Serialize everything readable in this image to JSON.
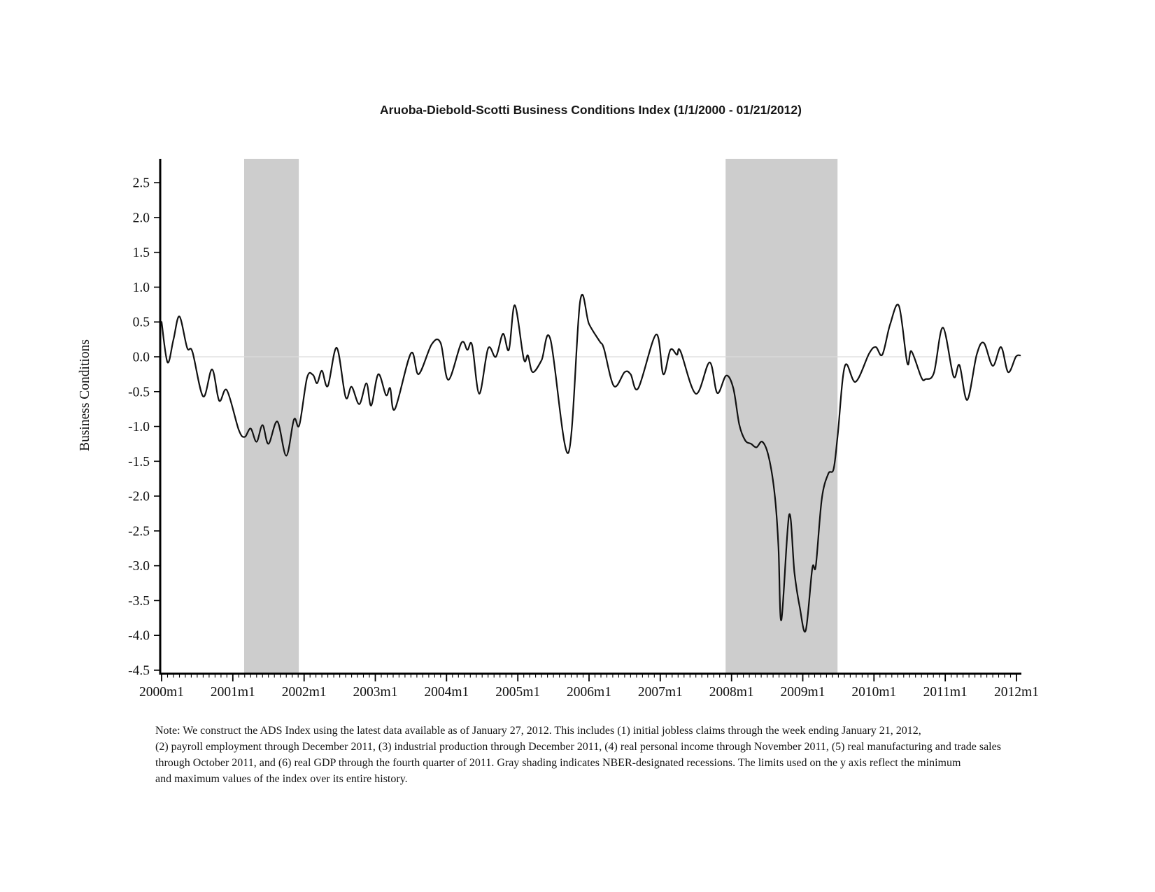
{
  "title": "Aruoba-Diebold-Scotti Business Conditions Index (1/1/2000 - 01/21/2012)",
  "y_axis": {
    "label": "Business Conditions",
    "tick_labels": [
      "2.5",
      "2.0",
      "1.5",
      "1.0",
      "0.5",
      "0.0",
      "-0.5",
      "-1.0",
      "-1.5",
      "-2.0",
      "-2.5",
      "-3.0",
      "-3.5",
      "-4.0",
      "-4.5"
    ]
  },
  "x_axis": {
    "tick_labels": [
      "2000m1",
      "2001m1",
      "2002m1",
      "2003m1",
      "2004m1",
      "2005m1",
      "2006m1",
      "2007m1",
      "2008m1",
      "2009m1",
      "2010m1",
      "2011m1",
      "2012m1"
    ],
    "minor_tick_interval": "monthly"
  },
  "note": {
    "lines": [
      "Note: We construct the ADS Index using the latest data available as of January 27, 2012. This includes (1) initial jobless claims through the week ending January 21, 2012,",
      "(2) payroll employment through December 2011, (3) industrial production through December 2011, (4) real personal income through November 2011, (5) real manufacturing and trade sales",
      "through October 2011, and (6) real GDP through the fourth quarter of 2011. Gray shading indicates NBER-designated recessions. The limits used on the y axis reflect the minimum",
      "and maximum values of the index over its entire history."
    ]
  },
  "colors": {
    "line": "#111111",
    "recession_shading": "#cdcdcd",
    "zero_line": "#dcdcdc",
    "axis": "#000000",
    "background": "#ffffff"
  },
  "chart_data": {
    "type": "line",
    "title": "Aruoba-Diebold-Scotti Business Conditions Index (1/1/2000 - 01/21/2012)",
    "xlabel": "",
    "ylabel": "Business Conditions",
    "x_unit": "months since 2000m1 (0 = 2000m1, 12 = 2001m1, ...)",
    "xlim": [
      0,
      144.8
    ],
    "ylim": [
      -4.56,
      2.84
    ],
    "y_ticks": [
      2.5,
      2.0,
      1.5,
      1.0,
      0.5,
      0.0,
      -0.5,
      -1.0,
      -1.5,
      -2.0,
      -2.5,
      -3.0,
      -3.5,
      -4.0,
      -4.5
    ],
    "x_tick_positions_months": [
      0,
      12,
      24,
      36,
      48,
      60,
      72,
      84,
      96,
      108,
      120,
      132,
      144
    ],
    "x_tick_labels": [
      "2000m1",
      "2001m1",
      "2002m1",
      "2003m1",
      "2004m1",
      "2005m1",
      "2006m1",
      "2007m1",
      "2008m1",
      "2009m1",
      "2010m1",
      "2011m1",
      "2012m1"
    ],
    "grid": "zero-line only",
    "legend": "none",
    "recession_bands": [
      {
        "start": 13.9,
        "end": 23.1,
        "label": "2001 recession (NBER)"
      },
      {
        "start": 95.0,
        "end": 113.85,
        "label": "2007-2009 recession (NBER)"
      }
    ],
    "series": [
      {
        "name": "ADS Business Conditions Index",
        "points": [
          [
            0,
            0.5
          ],
          [
            1,
            -0.08
          ],
          [
            2,
            0.25
          ],
          [
            3,
            0.58
          ],
          [
            4.3,
            0.13
          ],
          [
            5.2,
            0.07
          ],
          [
            7,
            -0.57
          ],
          [
            8.5,
            -0.18
          ],
          [
            9.7,
            -0.63
          ],
          [
            11,
            -0.48
          ],
          [
            13,
            -1.05
          ],
          [
            14,
            -1.15
          ],
          [
            15,
            -1.03
          ],
          [
            16,
            -1.22
          ],
          [
            17,
            -0.98
          ],
          [
            18,
            -1.25
          ],
          [
            19.5,
            -0.93
          ],
          [
            21,
            -1.42
          ],
          [
            22.3,
            -0.9
          ],
          [
            23.2,
            -0.98
          ],
          [
            24.5,
            -0.3
          ],
          [
            25.5,
            -0.26
          ],
          [
            26.2,
            -0.38
          ],
          [
            27,
            -0.2
          ],
          [
            28,
            -0.42
          ],
          [
            29.5,
            0.13
          ],
          [
            31,
            -0.58
          ],
          [
            32,
            -0.43
          ],
          [
            33.3,
            -0.68
          ],
          [
            34.5,
            -0.38
          ],
          [
            35.3,
            -0.7
          ],
          [
            36.5,
            -0.25
          ],
          [
            37.8,
            -0.55
          ],
          [
            38.5,
            -0.45
          ],
          [
            39.3,
            -0.75
          ],
          [
            42,
            0.05
          ],
          [
            43.3,
            -0.25
          ],
          [
            45.5,
            0.18
          ],
          [
            47,
            0.2
          ],
          [
            48.3,
            -0.33
          ],
          [
            50.5,
            0.2
          ],
          [
            51.5,
            0.1
          ],
          [
            52.3,
            0.17
          ],
          [
            53.5,
            -0.53
          ],
          [
            55,
            0.12
          ],
          [
            56.3,
            0.0
          ],
          [
            57.5,
            0.33
          ],
          [
            58.5,
            0.1
          ],
          [
            59.5,
            0.74
          ],
          [
            61,
            -0.03
          ],
          [
            61.7,
            0.02
          ],
          [
            62.5,
            -0.22
          ],
          [
            64,
            -0.05
          ],
          [
            65.5,
            0.25
          ],
          [
            68.5,
            -1.38
          ],
          [
            70.5,
            0.8
          ],
          [
            72,
            0.47
          ],
          [
            73.8,
            0.22
          ],
          [
            74.5,
            0.12
          ],
          [
            76.2,
            -0.42
          ],
          [
            78,
            -0.22
          ],
          [
            79,
            -0.25
          ],
          [
            80.3,
            -0.45
          ],
          [
            83.3,
            0.32
          ],
          [
            84.5,
            -0.25
          ],
          [
            85.7,
            0.1
          ],
          [
            86.8,
            0.03
          ],
          [
            87.4,
            0.08
          ],
          [
            90,
            -0.53
          ],
          [
            92.3,
            -0.08
          ],
          [
            93.6,
            -0.52
          ],
          [
            95.1,
            -0.27
          ],
          [
            96.3,
            -0.45
          ],
          [
            97.3,
            -0.97
          ],
          [
            98.3,
            -1.2
          ],
          [
            99.3,
            -1.25
          ],
          [
            100.2,
            -1.3
          ],
          [
            101.2,
            -1.22
          ],
          [
            102.3,
            -1.45
          ],
          [
            103.3,
            -2.0
          ],
          [
            103.9,
            -2.72
          ],
          [
            104.4,
            -3.78
          ],
          [
            105.7,
            -2.27
          ],
          [
            106.6,
            -3.1
          ],
          [
            107.5,
            -3.6
          ],
          [
            108.5,
            -3.93
          ],
          [
            109.6,
            -3.04
          ],
          [
            110.2,
            -3.0
          ],
          [
            111.2,
            -2.04
          ],
          [
            112.3,
            -1.68
          ],
          [
            113.2,
            -1.61
          ],
          [
            113.9,
            -1.11
          ],
          [
            115.1,
            -0.13
          ],
          [
            116.9,
            -0.36
          ],
          [
            119.2,
            0.05
          ],
          [
            120.3,
            0.14
          ],
          [
            121.4,
            0.03
          ],
          [
            122.7,
            0.46
          ],
          [
            124.2,
            0.73
          ],
          [
            125.6,
            -0.09
          ],
          [
            126.3,
            0.08
          ],
          [
            128,
            -0.3
          ],
          [
            128.7,
            -0.32
          ],
          [
            130.1,
            -0.23
          ],
          [
            131.6,
            0.42
          ],
          [
            133.4,
            -0.28
          ],
          [
            134.4,
            -0.12
          ],
          [
            135.7,
            -0.62
          ],
          [
            137.3,
            0.03
          ],
          [
            138.5,
            0.2
          ],
          [
            140,
            -0.13
          ],
          [
            141.4,
            0.14
          ],
          [
            142.6,
            -0.22
          ],
          [
            143.9,
            0.0
          ],
          [
            144.6,
            0.02
          ]
        ]
      }
    ]
  }
}
